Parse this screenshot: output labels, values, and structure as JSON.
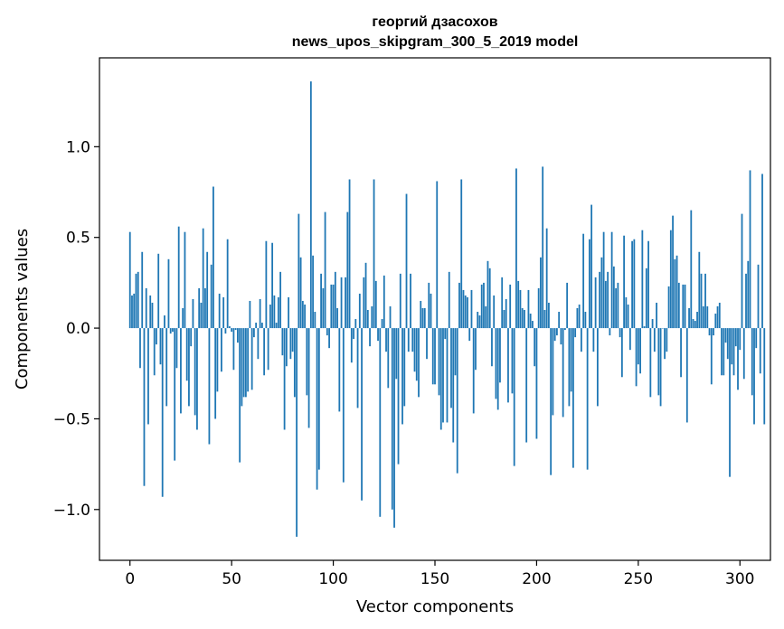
{
  "chart_data": {
    "type": "bar",
    "title_lines": [
      "георгий дзасохов",
      "news_upos_skipgram_300_5_2019 model"
    ],
    "xlabel": "Vector components",
    "ylabel": "Components values",
    "xlim": [
      -15,
      315
    ],
    "ylim": [
      -1.28,
      1.49
    ],
    "xticks": [
      0,
      50,
      100,
      150,
      200,
      250,
      300
    ],
    "xtick_labels": [
      "0",
      "50",
      "100",
      "150",
      "200",
      "250",
      "300"
    ],
    "yticks": [
      -1.0,
      -0.5,
      0.0,
      0.5,
      1.0
    ],
    "ytick_labels": [
      "−1.0",
      "−0.5",
      "0.0",
      "0.5",
      "1.0"
    ],
    "grid": false,
    "bar_color": "#1f77b4",
    "values": [
      0.53,
      0.18,
      0.19,
      0.3,
      0.31,
      -0.22,
      0.42,
      -0.87,
      0.22,
      -0.53,
      0.18,
      0.14,
      -0.26,
      -0.09,
      0.41,
      -0.2,
      -0.93,
      0.07,
      -0.43,
      0.38,
      -0.03,
      -0.02,
      -0.73,
      -0.22,
      0.56,
      -0.47,
      0.11,
      0.53,
      -0.29,
      -0.43,
      -0.1,
      0.16,
      -0.48,
      -0.56,
      0.22,
      0.14,
      0.55,
      0.22,
      0.42,
      -0.64,
      0.35,
      0.78,
      -0.5,
      -0.35,
      0.19,
      -0.24,
      0.17,
      -0.03,
      0.49,
      0.01,
      -0.02,
      -0.23,
      -0.01,
      -0.08,
      -0.74,
      -0.43,
      -0.38,
      -0.38,
      -0.35,
      0.15,
      -0.34,
      -0.05,
      0.03,
      -0.17,
      0.16,
      0.03,
      -0.26,
      0.48,
      -0.23,
      0.13,
      0.47,
      0.18,
      0.03,
      0.17,
      0.31,
      -0.15,
      -0.56,
      -0.21,
      0.17,
      -0.17,
      -0.13,
      -0.38,
      -1.15,
      0.63,
      0.39,
      0.15,
      0.13,
      -0.37,
      -0.55,
      1.36,
      0.4,
      0.09,
      -0.89,
      -0.78,
      0.3,
      0.22,
      0.64,
      -0.04,
      -0.11,
      0.24,
      0.24,
      0.31,
      0.11,
      -0.46,
      0.28,
      -0.85,
      0.28,
      0.64,
      0.82,
      -0.19,
      -0.06,
      0.05,
      -0.44,
      0.19,
      -0.95,
      0.28,
      0.36,
      0.1,
      -0.1,
      0.12,
      0.82,
      0.26,
      -0.07,
      -1.04,
      0.05,
      0.29,
      -0.13,
      -0.33,
      0.12,
      -1.0,
      -1.1,
      -0.28,
      -0.75,
      0.3,
      -0.53,
      -0.43,
      0.74,
      -0.13,
      0.3,
      -0.13,
      -0.24,
      -0.29,
      -0.38,
      0.15,
      0.11,
      0.11,
      -0.17,
      0.25,
      0.19,
      -0.31,
      -0.31,
      0.81,
      -0.37,
      -0.56,
      -0.52,
      -0.06,
      -0.52,
      0.31,
      -0.44,
      -0.63,
      -0.26,
      -0.8,
      0.25,
      0.82,
      0.21,
      0.18,
      0.17,
      -0.07,
      0.21,
      -0.47,
      -0.23,
      0.09,
      0.07,
      0.24,
      0.25,
      0.12,
      0.37,
      0.33,
      -0.21,
      0.18,
      -0.39,
      -0.45,
      -0.3,
      0.28,
      0.1,
      0.16,
      -0.41,
      0.24,
      -0.36,
      -0.76,
      0.88,
      0.26,
      0.21,
      0.11,
      0.1,
      -0.63,
      0.21,
      0.08,
      0.04,
      -0.21,
      -0.61,
      0.22,
      0.39,
      0.89,
      0.1,
      0.55,
      0.14,
      -0.81,
      -0.48,
      -0.07,
      -0.04,
      0.09,
      -0.09,
      -0.49,
      -0.01,
      0.25,
      -0.43,
      -0.35,
      -0.77,
      -0.05,
      0.11,
      0.13,
      -0.13,
      0.52,
      0.09,
      -0.78,
      0.49,
      0.68,
      -0.13,
      0.28,
      -0.43,
      0.31,
      0.39,
      0.53,
      0.26,
      0.31,
      -0.04,
      0.53,
      0.34,
      0.22,
      0.25,
      -0.05,
      -0.27,
      0.51,
      0.17,
      0.13,
      -0.12,
      0.48,
      0.49,
      -0.32,
      -0.2,
      -0.25,
      0.54,
      0.01,
      0.33,
      0.48,
      -0.38,
      0.05,
      -0.13,
      0.14,
      -0.37,
      -0.43,
      0.0,
      -0.17,
      -0.13,
      0.23,
      0.54,
      0.62,
      0.38,
      0.4,
      0.25,
      -0.27,
      0.24,
      0.24,
      -0.52,
      0.11,
      0.65,
      0.05,
      0.04,
      0.09,
      0.42,
      0.3,
      0.12,
      0.3,
      0.12,
      -0.04,
      -0.31,
      -0.04,
      0.08,
      0.12,
      0.14,
      -0.26,
      -0.26,
      -0.08,
      -0.17,
      -0.82,
      -0.2,
      -0.26,
      -0.1,
      -0.34,
      -0.12,
      0.63,
      -0.28,
      0.3,
      0.37,
      0.87,
      -0.37,
      -0.53,
      -0.11,
      0.35,
      -0.25,
      0.85,
      -0.53
    ]
  }
}
